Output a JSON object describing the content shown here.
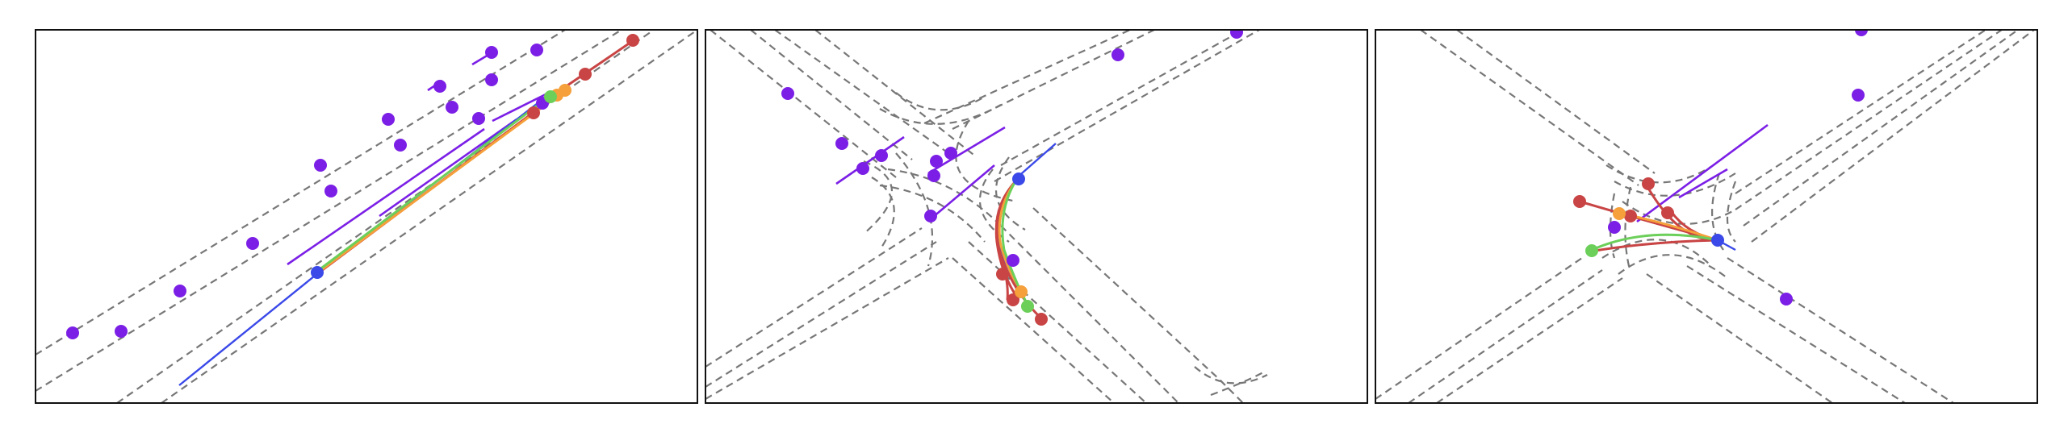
{
  "figure": {
    "panel_count": 3,
    "colors": {
      "lane": "#777777",
      "agent": "#7b1fe6",
      "ego": "#3a49e8",
      "pred_red": "#c94444",
      "pred_orange": "#f5a03a",
      "pred_green": "#6ccf5a",
      "frame": "#111111"
    }
  }
}
